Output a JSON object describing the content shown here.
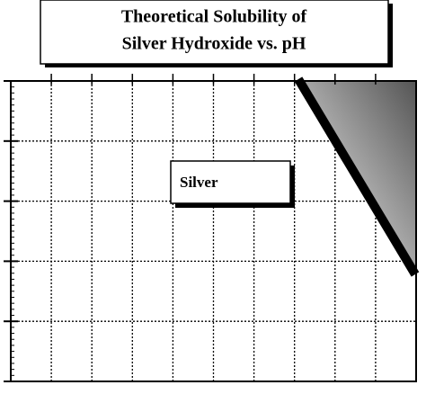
{
  "title": {
    "lines": [
      "Theoretical Solubility of",
      "Silver Hydroxide vs. pH"
    ]
  },
  "label": "Silver"
}
